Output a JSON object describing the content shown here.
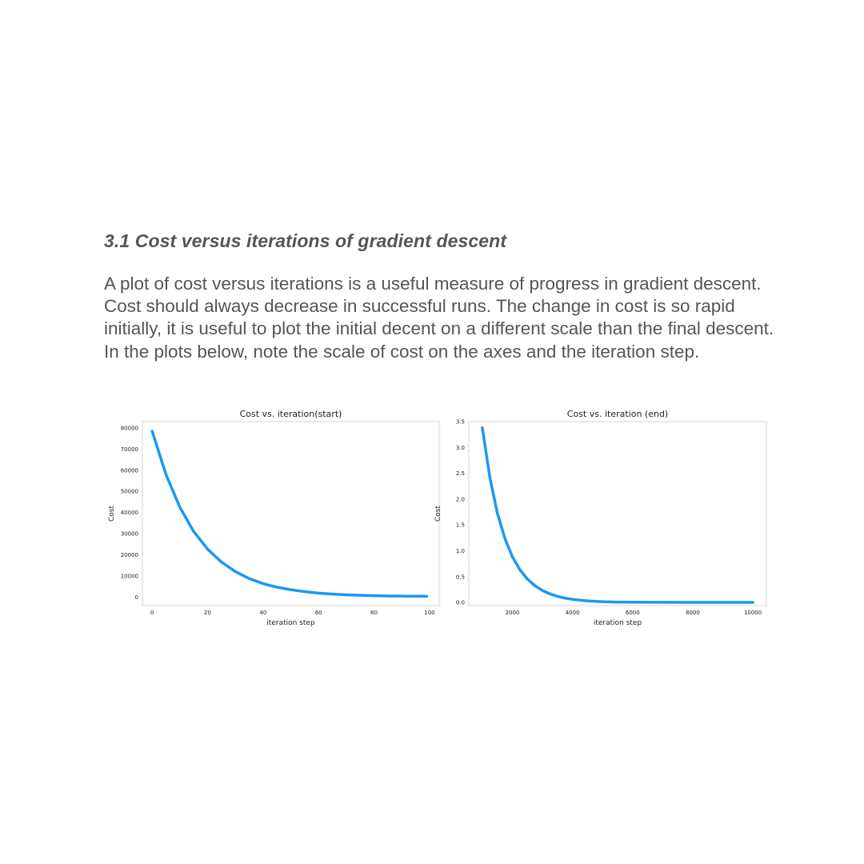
{
  "section": {
    "heading": "3.1 Cost versus iterations of gradient descent",
    "body": "A plot of cost versus iterations is a useful measure of progress in gradient descent. Cost should always decrease in successful runs. The change in cost is so rapid initially, it is useful to plot the initial decent on a different scale than the final descent. In the plots below, note the scale of cost on the axes and the iteration step."
  },
  "colors": {
    "line": "#1a98f2",
    "frame": "#ececec",
    "text": "#555555"
  },
  "chart_data": [
    {
      "type": "line",
      "title": "Cost vs. iteration(start)",
      "xlabel": "iteration step",
      "ylabel": "Cost",
      "xlim": [
        -3.5,
        103.5
      ],
      "ylim": [
        -4000,
        83000
      ],
      "xticks": [
        0,
        20,
        40,
        60,
        80,
        100
      ],
      "xtick_labels": [
        "0",
        "20",
        "40",
        "60",
        "80",
        "100"
      ],
      "yticks": [
        0,
        10000,
        20000,
        30000,
        40000,
        50000,
        60000,
        70000,
        80000
      ],
      "ytick_labels": [
        "0",
        "10000",
        "20000",
        "30000",
        "40000",
        "50000",
        "60000",
        "70000",
        "80000"
      ],
      "grid": false,
      "series": [
        {
          "x": [
            0,
            5,
            10,
            15,
            20,
            25,
            30,
            35,
            40,
            45,
            50,
            55,
            60,
            65,
            70,
            75,
            80,
            85,
            90,
            95,
            99
          ],
          "y": [
            78500,
            58000,
            42500,
            31000,
            22700,
            16600,
            12100,
            8800,
            6400,
            4700,
            3500,
            2600,
            1900,
            1450,
            1100,
            850,
            680,
            560,
            480,
            420,
            390
          ]
        }
      ]
    },
    {
      "type": "line",
      "title": "Cost vs. iteration (end)",
      "xlabel": "iteration step",
      "ylabel": "Cost",
      "xlim": [
        550,
        10450
      ],
      "ylim": [
        -0.06,
        3.5
      ],
      "xticks": [
        2000,
        4000,
        6000,
        8000,
        10000
      ],
      "xtick_labels": [
        "2000",
        "4000",
        "6000",
        "8000",
        "10000"
      ],
      "yticks": [
        0.0,
        0.5,
        1.0,
        1.5,
        2.0,
        2.5,
        3.0,
        3.5
      ],
      "ytick_labels": [
        "0.0",
        "0.5",
        "1.0",
        "1.5",
        "2.0",
        "2.5",
        "3.0",
        "3.5"
      ],
      "grid": false,
      "series": [
        {
          "x": [
            1000,
            1250,
            1500,
            1750,
            2000,
            2250,
            2500,
            2750,
            3000,
            3250,
            3500,
            3750,
            4000,
            4500,
            5000,
            5500,
            6000,
            7000,
            8000,
            9000,
            10000
          ],
          "y": [
            3.38,
            2.42,
            1.73,
            1.24,
            0.885,
            0.634,
            0.453,
            0.324,
            0.232,
            0.166,
            0.119,
            0.085,
            0.061,
            0.031,
            0.016,
            0.008,
            0.005,
            0.003,
            0.002,
            0.002,
            0.002
          ]
        }
      ]
    }
  ]
}
